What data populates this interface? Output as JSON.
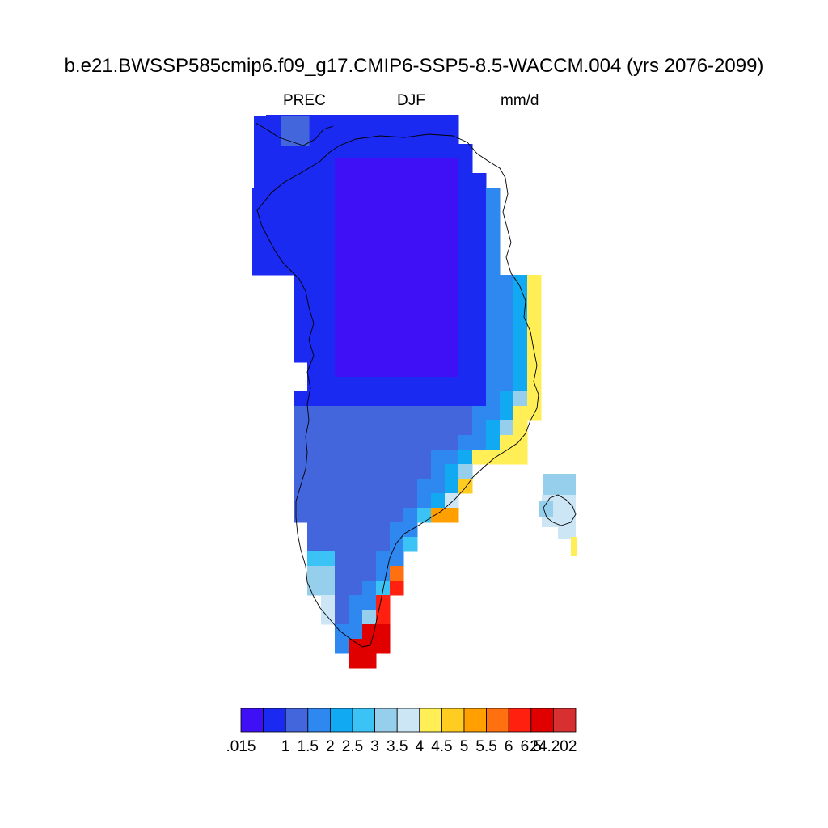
{
  "title": "b.e21.BWSSP585cmip6.f09_g17.CMIP6-SSP5-8.5-WACCM.004 (yrs 2076-2099)",
  "subtitle": {
    "variable": "PREC",
    "season": "DJF",
    "units": "mm/d"
  },
  "colorbar": {
    "colors": [
      "#3f10f5",
      "#1a2af0",
      "#4466dd",
      "#2e88f0",
      "#11aaf2",
      "#3bc3f5",
      "#96cfeb",
      "#cce6f5",
      "#ffee55",
      "#ffcc22",
      "#ffa000",
      "#ff7010",
      "#ff2010",
      "#e00000",
      "#d83030"
    ],
    "labels": [
      ".015",
      "1",
      "1.5",
      "2",
      "2.5",
      "3",
      "3.5",
      "4",
      "4.5",
      "5",
      "5.5",
      "6",
      "6.5",
      "24.202"
    ]
  },
  "map": {
    "region": "Greenland",
    "field": "Precipitation, DJF mean",
    "pattern": "driest (< 1 mm/d) over the northern interior ice sheet; wettest (4.5 to >6.5 mm/d) along the southeast coast near the southern tip; 3–4 mm/d over Iceland"
  }
}
